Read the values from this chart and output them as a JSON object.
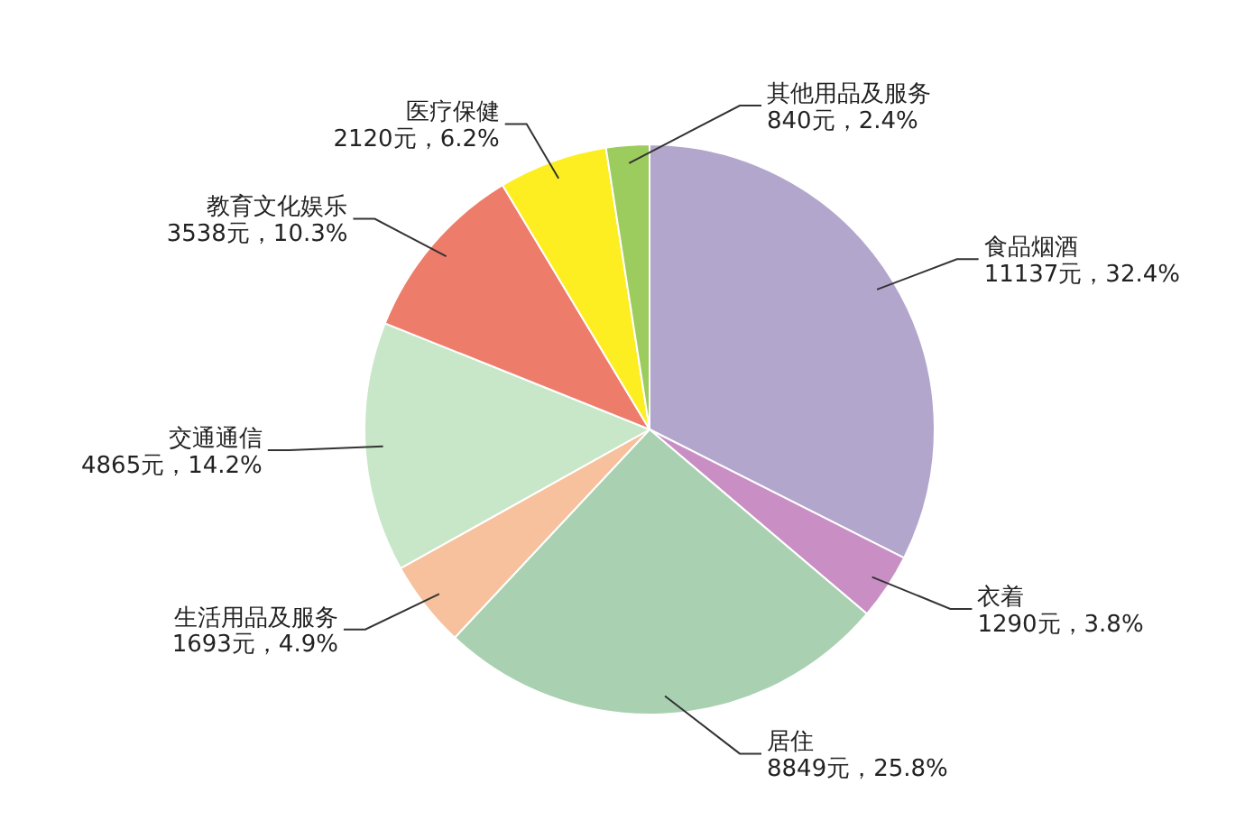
{
  "chart_data": {
    "type": "pie",
    "categories": [
      "食品烟酒",
      "衣着",
      "居住",
      "生活用品及服务",
      "交通通信",
      "教育文化娱乐",
      "医疗保健",
      "其他用品及服务"
    ],
    "values": [
      11137,
      1290,
      8849,
      1693,
      4865,
      3538,
      2120,
      840
    ],
    "value_labels": [
      "11137元，32.4%",
      "1290元，3.8%",
      "8849元，25.8%",
      "1693元，4.9%",
      "4865元，14.2%",
      "3538元，10.3%",
      "2120元，6.2%",
      "840元，2.4%"
    ],
    "colors": [
      "#b3a6cc",
      "#c98fc5",
      "#a9d1b1",
      "#f6c19c",
      "#c8e6c8",
      "#ee7c6b",
      "#fdee21",
      "#9ccc5e"
    ]
  }
}
